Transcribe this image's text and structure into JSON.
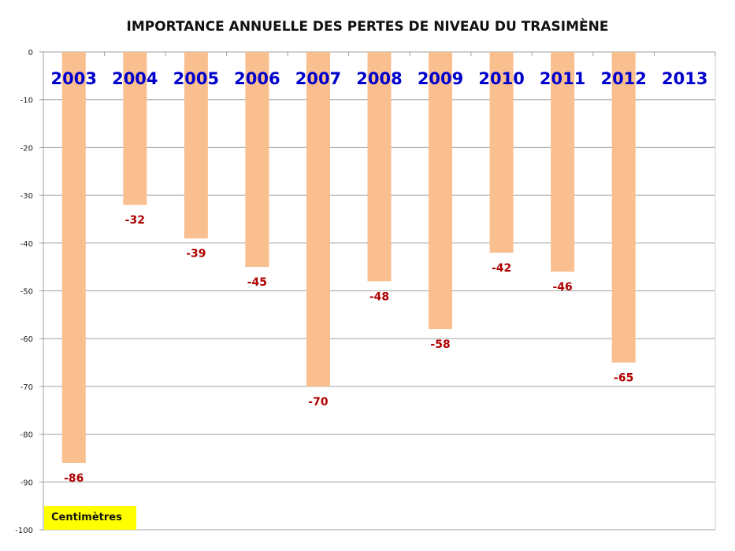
{
  "chart_data": {
    "type": "bar",
    "title": "IMPORTANCE ANNUELLE DES PERTES DE NIVEAU DU TRASIMÈNE",
    "ylabel": "Centimètres",
    "xlabel": "",
    "categories": [
      "2003",
      "2004",
      "2005",
      "2006",
      "2007",
      "2008",
      "2009",
      "2010",
      "2011",
      "2012",
      "2013"
    ],
    "values": [
      -86,
      -32,
      -39,
      -45,
      -70,
      -48,
      -58,
      -42,
      -46,
      -65,
      null
    ],
    "data_labels": [
      "-86",
      "-32",
      "-39",
      "-45",
      "-70",
      "-48",
      "-58",
      "-42",
      "-46",
      "-65",
      ""
    ],
    "ylim": [
      -100,
      0
    ],
    "yticks": [
      0,
      -10,
      -20,
      -30,
      -40,
      -50,
      -60,
      -70,
      -80,
      -90,
      -100
    ],
    "grid": true,
    "colors": {
      "bar": "#f9bf8f",
      "category_label": "#0000cc",
      "data_label": "#b00000",
      "grid": "#a0a0a0",
      "unit_box": "#ffff00"
    }
  }
}
